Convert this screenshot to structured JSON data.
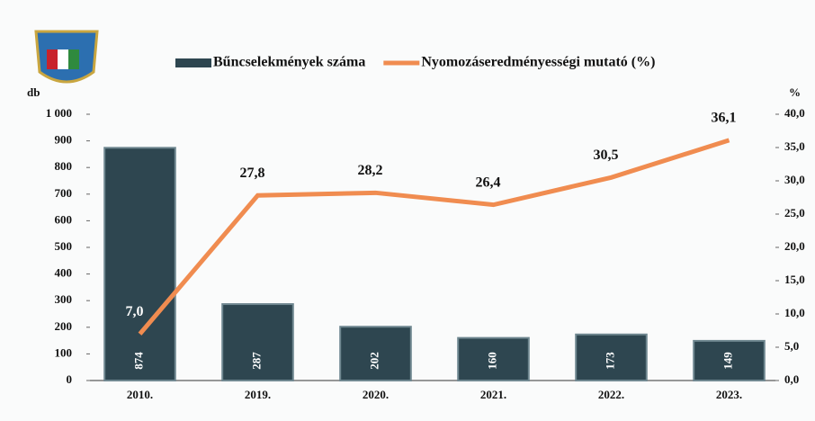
{
  "chart_data": {
    "type": "bar",
    "categories": [
      "2010.",
      "2019.",
      "2020.",
      "2021.",
      "2022.",
      "2023."
    ],
    "series": [
      {
        "name": "Bűncselekmények száma",
        "type": "bar",
        "color": "#2e4650",
        "values": [
          874,
          287,
          202,
          160,
          173,
          149
        ]
      },
      {
        "name": "Nyomozáseredményességi mutató (%)",
        "type": "line",
        "axis": "y2",
        "color": "#f08c50",
        "values": [
          7.0,
          27.8,
          28.2,
          26.4,
          30.5,
          36.1
        ],
        "value_labels": [
          "7,0",
          "27,8",
          "28,2",
          "26,4",
          "30,5",
          "36,1"
        ]
      }
    ],
    "ylabel": "db",
    "y2label": "%",
    "ylim": [
      0,
      1000
    ],
    "yticks": [
      0,
      100,
      200,
      300,
      400,
      500,
      600,
      700,
      800,
      900,
      {
        "value": 1000,
        "label": "1 000"
      }
    ],
    "y2lim": [
      0,
      40
    ],
    "y2ticks": [
      {
        "value": 0,
        "label": "0,0"
      },
      {
        "value": 5,
        "label": "5,0"
      },
      {
        "value": 10,
        "label": "10,0"
      },
      {
        "value": 15,
        "label": "15,0"
      },
      {
        "value": 20,
        "label": "20,0"
      },
      {
        "value": 25,
        "label": "25,0"
      },
      {
        "value": 30,
        "label": "30,0"
      },
      {
        "value": 35,
        "label": "35,0"
      },
      {
        "value": 40,
        "label": "40,0"
      }
    ],
    "legend": "top"
  }
}
